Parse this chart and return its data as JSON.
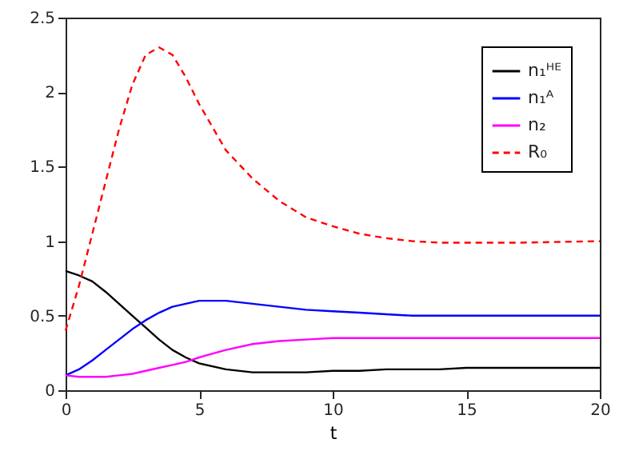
{
  "chart_data": {
    "type": "line",
    "xlabel": "t",
    "xlim": [
      0,
      20
    ],
    "xticks": [
      0,
      5,
      10,
      15,
      20
    ],
    "ylim": [
      0,
      2.5
    ],
    "yticks": [
      0,
      0.5,
      1,
      1.5,
      2,
      2.5
    ],
    "grid": false,
    "legend": "top right",
    "marker": "none",
    "x": [
      0,
      0.5,
      1,
      1.5,
      2,
      2.5,
      3,
      3.5,
      4,
      4.5,
      5,
      6,
      7,
      8,
      9,
      10,
      11,
      12,
      13,
      14,
      15,
      17,
      20
    ],
    "series": [
      {
        "name": "n₁ᴴᴱ",
        "color": "#000000",
        "line_style": "solid",
        "values": [
          0.8,
          0.77,
          0.73,
          0.66,
          0.58,
          0.5,
          0.42,
          0.34,
          0.27,
          0.22,
          0.18,
          0.14,
          0.12,
          0.12,
          0.12,
          0.13,
          0.13,
          0.14,
          0.14,
          0.14,
          0.15,
          0.15,
          0.15
        ]
      },
      {
        "name": "n₁ᴬ",
        "color": "#0000ff",
        "line_style": "solid",
        "values": [
          0.1,
          0.14,
          0.2,
          0.27,
          0.34,
          0.41,
          0.47,
          0.52,
          0.56,
          0.58,
          0.6,
          0.6,
          0.58,
          0.56,
          0.54,
          0.53,
          0.52,
          0.51,
          0.5,
          0.5,
          0.5,
          0.5,
          0.5
        ]
      },
      {
        "name": "n₂",
        "color": "#ff00ff",
        "line_style": "solid",
        "values": [
          0.1,
          0.09,
          0.09,
          0.09,
          0.1,
          0.11,
          0.13,
          0.15,
          0.17,
          0.19,
          0.22,
          0.27,
          0.31,
          0.33,
          0.34,
          0.35,
          0.35,
          0.35,
          0.35,
          0.35,
          0.35,
          0.35,
          0.35
        ]
      },
      {
        "name": "R₀",
        "color": "#ff0000",
        "line_style": "dashed",
        "values": [
          0.4,
          0.7,
          1.05,
          1.4,
          1.75,
          2.05,
          2.25,
          2.3,
          2.25,
          2.1,
          1.92,
          1.61,
          1.42,
          1.27,
          1.16,
          1.1,
          1.05,
          1.02,
          1.0,
          0.99,
          0.99,
          0.99,
          1.0
        ]
      }
    ]
  }
}
